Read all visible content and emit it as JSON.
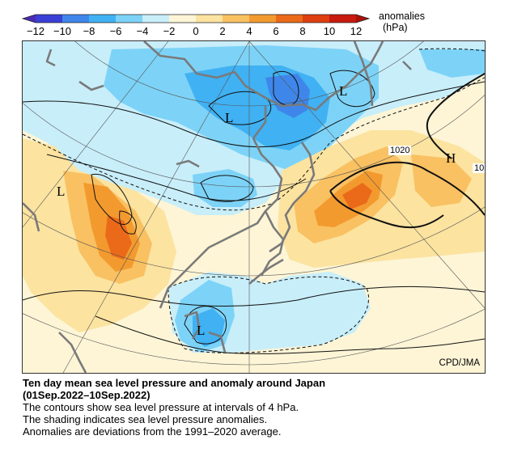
{
  "legend": {
    "title_line1": "anomalies",
    "title_line2": "(hPa)",
    "ticks": [
      "−12",
      "−10",
      "−8",
      "−6",
      "−4",
      "−2",
      "0",
      "2",
      "4",
      "6",
      "8",
      "10",
      "12"
    ],
    "colors": [
      "#3a3fd6",
      "#3f86ea",
      "#40b1f3",
      "#7dd3f7",
      "#c8eefa",
      "#fdf5d6",
      "#fce3a0",
      "#f9c162",
      "#f39a2f",
      "#ea6a1a",
      "#de3e10",
      "#c81a0e"
    ]
  },
  "map": {
    "labels": {
      "low_1": "L",
      "low_2": "L",
      "low_3": "L",
      "low_4": "L",
      "high_1": "H",
      "contour_1020": "1020",
      "contour_10": "10"
    },
    "credit": "CPD/JMA"
  },
  "caption": {
    "title_1": "Ten day mean sea level pressure and anomaly around Japan",
    "title_2": "(01Sep.2022–10Sep.2022)",
    "line_1": "The contours show sea level pressure at intervals of 4 hPa.",
    "line_2": "The shading indicates sea level pressure anomalies.",
    "line_3": "Anomalies are deviations from the 1991–2020 average."
  }
}
